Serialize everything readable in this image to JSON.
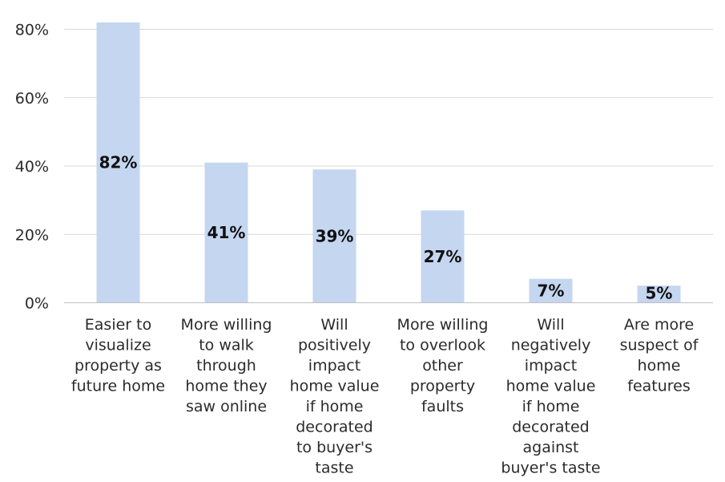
{
  "chart_data": {
    "type": "bar",
    "categories": [
      [
        "Easier to",
        "visualize",
        "property as",
        "future home"
      ],
      [
        "More willing",
        "to walk",
        "through",
        "home they",
        "saw online"
      ],
      [
        "Will",
        "positively",
        "impact",
        "home value",
        "if home",
        "decorated",
        "to buyer's",
        "taste"
      ],
      [
        "More willing",
        "to overlook",
        "other",
        "property",
        "faults"
      ],
      [
        "Will",
        "negatively",
        "impact",
        "home value",
        "if home",
        "decorated",
        "against",
        "buyer's taste"
      ],
      [
        "Are more",
        "suspect of",
        "home",
        "features"
      ]
    ],
    "values": [
      82,
      41,
      39,
      27,
      7,
      5
    ],
    "data_labels": [
      "82%",
      "41%",
      "39%",
      "27%",
      "7%",
      "5%"
    ],
    "yticks": [
      0,
      20,
      40,
      60,
      80
    ],
    "ytick_labels": [
      "0%",
      "20%",
      "40%",
      "60%",
      "80%"
    ],
    "ylim": [
      0,
      80
    ],
    "title": "",
    "xlabel": "",
    "ylabel": "",
    "grid": true,
    "legend": "none",
    "bar_color": "#c5d6f0"
  }
}
